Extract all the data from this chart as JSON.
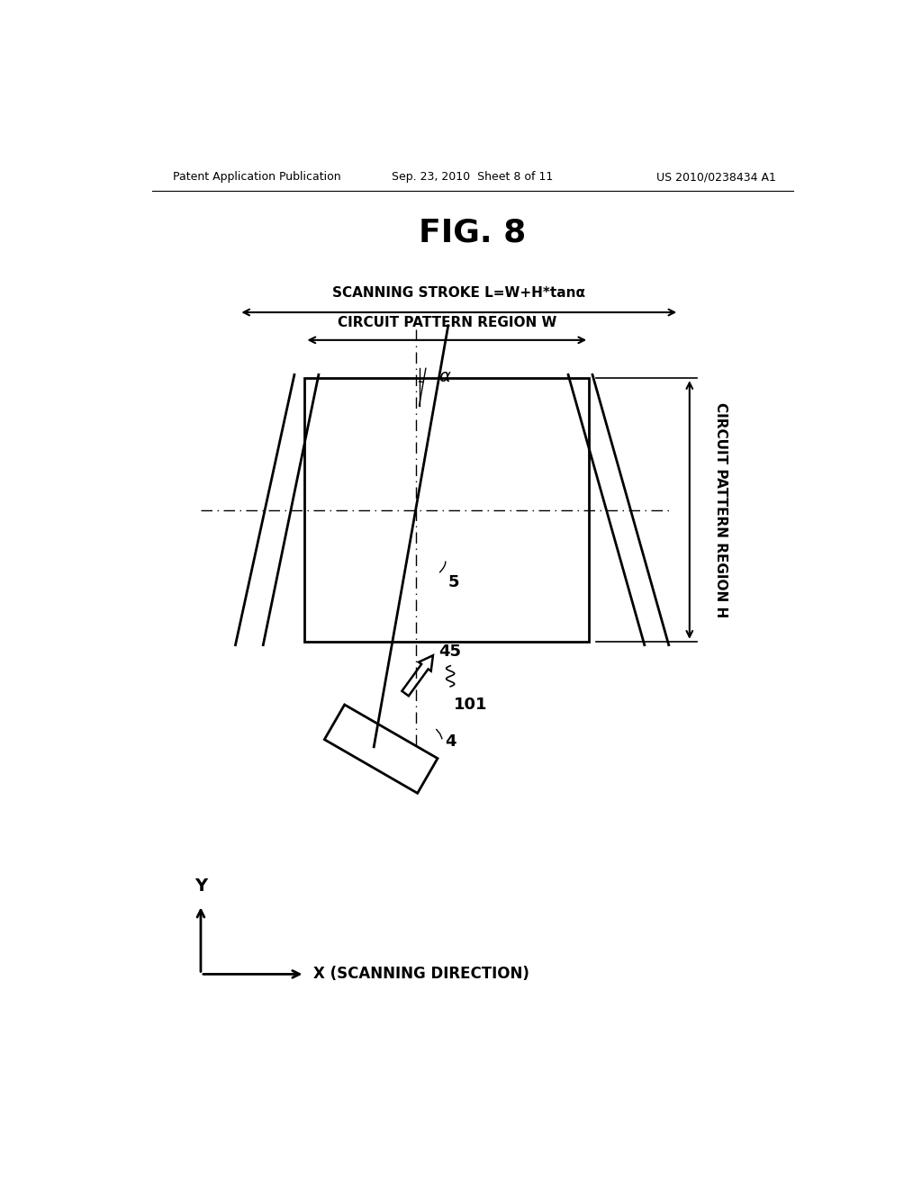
{
  "bg_color": "#ffffff",
  "header_left": "Patent Application Publication",
  "header_mid": "Sep. 23, 2010  Sheet 8 of 11",
  "header_right": "US 2010/0238434 A1",
  "fig_title": "FIG. 8",
  "scanning_stroke_label": "SCANNING STROKE L=W+H*tanα",
  "circuit_pattern_w_label": "CIRCUIT PATTERN REGION W",
  "circuit_pattern_h_label": "CIRCUIT PATTERN REGION H",
  "label_5": "5",
  "label_45": "45",
  "label_101": "101",
  "label_4": "4",
  "label_alpha": "α",
  "x_axis_label": "X (SCANNING DIRECTION)",
  "y_axis_label": "Y"
}
